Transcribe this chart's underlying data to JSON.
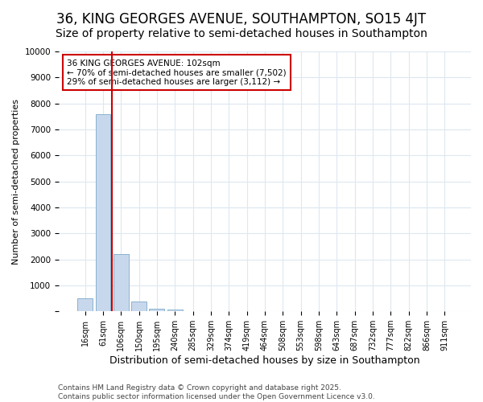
{
  "title": "36, KING GEORGES AVENUE, SOUTHAMPTON, SO15 4JT",
  "subtitle": "Size of property relative to semi-detached houses in Southampton",
  "xlabel": "Distribution of semi-detached houses by size in Southampton",
  "ylabel": "Number of semi-detached properties",
  "categories": [
    "16sqm",
    "61sqm",
    "106sqm",
    "150sqm",
    "195sqm",
    "240sqm",
    "285sqm",
    "329sqm",
    "374sqm",
    "419sqm",
    "464sqm",
    "508sqm",
    "553sqm",
    "598sqm",
    "643sqm",
    "687sqm",
    "732sqm",
    "777sqm",
    "822sqm",
    "866sqm",
    "911sqm"
  ],
  "values": [
    500,
    7600,
    2200,
    375,
    100,
    60,
    0,
    0,
    0,
    0,
    0,
    0,
    0,
    0,
    0,
    0,
    0,
    0,
    0,
    0,
    0
  ],
  "bar_color": "#c8d8ec",
  "bar_edgecolor": "#7aaac8",
  "vline_color": "#cc0000",
  "vline_x_index": 2,
  "annotation_text": "36 KING GEORGES AVENUE: 102sqm\n← 70% of semi-detached houses are smaller (7,502)\n29% of semi-detached houses are larger (3,112) →",
  "annotation_box_facecolor": "#ffffff",
  "annotation_box_edgecolor": "#cc0000",
  "ylim": [
    0,
    10000
  ],
  "yticks": [
    0,
    1000,
    2000,
    3000,
    4000,
    5000,
    6000,
    7000,
    8000,
    9000,
    10000
  ],
  "bg_color": "#ffffff",
  "plot_bg_color": "#ffffff",
  "grid_color": "#dde8f0",
  "footer": "Contains HM Land Registry data © Crown copyright and database right 2025.\nContains public sector information licensed under the Open Government Licence v3.0.",
  "title_fontsize": 12,
  "subtitle_fontsize": 10,
  "footer_fontsize": 6.5,
  "ylabel_fontsize": 8,
  "xlabel_fontsize": 9
}
